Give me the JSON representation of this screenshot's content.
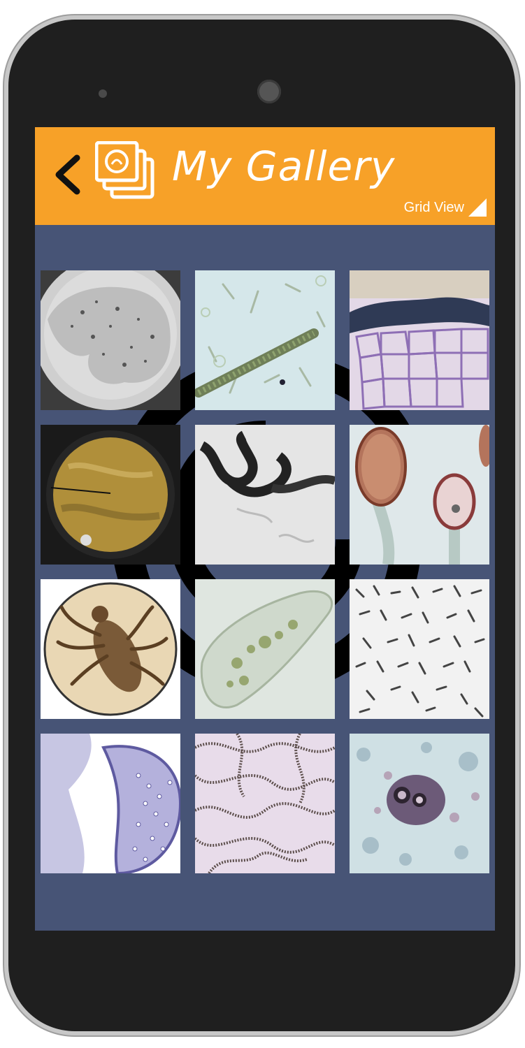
{
  "app": {
    "title": "My Gallery",
    "view_toggle_label": "Grid View"
  },
  "colors": {
    "appbar": "#f7a128",
    "screen_bg": "#475476",
    "phone_body": "#1f1f1f"
  },
  "icons": {
    "back": "chevron-left-icon",
    "logo": "gallery-photos-icon",
    "view_toggle": "corner-triangle-icon"
  },
  "gallery": {
    "items": [
      {
        "subject": "amoeba"
      },
      {
        "subject": "filamentous-algae"
      },
      {
        "subject": "plant-tissue-section"
      },
      {
        "subject": "microscope-eyepiece-view"
      },
      {
        "subject": "filovirus-micrograph"
      },
      {
        "subject": "fungal-sporangia"
      },
      {
        "subject": "louse"
      },
      {
        "subject": "paramecium"
      },
      {
        "subject": "rod-bacteria"
      },
      {
        "subject": "stained-tissue-section"
      },
      {
        "subject": "bead-chain-bacteria"
      },
      {
        "subject": "cyst-in-smear"
      }
    ]
  }
}
